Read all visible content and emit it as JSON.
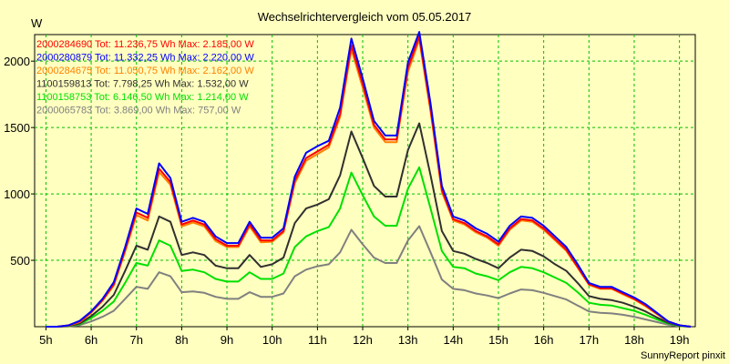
{
  "title": "Wechselrichtervergleich vom 05.05.2017",
  "y_unit": "W",
  "footer": "SunnyReport pinxit",
  "chart_data": {
    "type": "line",
    "title": "Wechselrichtervergleich vom 05.05.2017",
    "xlabel": "",
    "ylabel": "W",
    "xlim": [
      4.75,
      19.35
    ],
    "ylim": [
      0,
      2200
    ],
    "grid": true,
    "legend_position": "top-left",
    "x_ticks": [
      5,
      6,
      7,
      8,
      9,
      10,
      11,
      12,
      13,
      14,
      15,
      16,
      17,
      18,
      19
    ],
    "x_tick_labels": [
      "5h",
      "6h",
      "7h",
      "8h",
      "9h",
      "10h",
      "11h",
      "12h",
      "13h",
      "14h",
      "15h",
      "16h",
      "17h",
      "18h",
      "19h"
    ],
    "y_ticks": [
      500,
      1000,
      1500,
      2000
    ],
    "y_tick_labels": [
      "500",
      "1000",
      "1500",
      "2000"
    ],
    "x": [
      5.0,
      5.25,
      5.5,
      5.75,
      6.0,
      6.25,
      6.5,
      6.75,
      7.0,
      7.25,
      7.5,
      7.75,
      8.0,
      8.25,
      8.5,
      8.75,
      9.0,
      9.25,
      9.5,
      9.75,
      10.0,
      10.25,
      10.5,
      10.75,
      11.0,
      11.25,
      11.5,
      11.75,
      12.0,
      12.25,
      12.5,
      12.75,
      13.0,
      13.25,
      13.5,
      13.75,
      14.0,
      14.25,
      14.5,
      14.75,
      15.0,
      15.25,
      15.5,
      15.75,
      16.0,
      16.25,
      16.5,
      16.75,
      17.0,
      17.25,
      17.5,
      17.75,
      18.0,
      18.25,
      18.5,
      18.75,
      19.0,
      19.25
    ],
    "series": [
      {
        "name": "2000284690",
        "legend": "2000284690 Tot: 11.236,75 Wh Max: 2.185,00 W",
        "color": "#ff0000",
        "values": [
          0,
          0,
          10,
          40,
          110,
          200,
          320,
          580,
          860,
          820,
          1190,
          1090,
          770,
          800,
          770,
          660,
          610,
          610,
          770,
          650,
          650,
          720,
          1100,
          1270,
          1320,
          1370,
          1600,
          2120,
          1830,
          1520,
          1410,
          1410,
          1950,
          2185,
          1640,
          1030,
          810,
          780,
          720,
          680,
          620,
          740,
          810,
          800,
          740,
          660,
          580,
          450,
          320,
          290,
          290,
          250,
          210,
          160,
          100,
          40,
          10,
          0
        ]
      },
      {
        "name": "2000280879",
        "legend": "2000280879 Tot: 11.332,25 Wh Max: 2.220,00 W",
        "color": "#0000ff",
        "values": [
          0,
          0,
          10,
          45,
          115,
          210,
          335,
          600,
          890,
          850,
          1230,
          1120,
          790,
          820,
          790,
          680,
          630,
          630,
          790,
          670,
          670,
          740,
          1130,
          1310,
          1360,
          1400,
          1650,
          2170,
          1870,
          1550,
          1440,
          1440,
          1990,
          2220,
          1680,
          1060,
          830,
          800,
          740,
          700,
          640,
          760,
          830,
          820,
          760,
          680,
          600,
          470,
          330,
          300,
          300,
          260,
          220,
          170,
          105,
          40,
          10,
          0
        ]
      },
      {
        "name": "2000284675",
        "legend": "2000284675 Tot: 11.050,75 Wh Max: 2.162,00 W",
        "color": "#ff8000",
        "values": [
          0,
          0,
          8,
          35,
          105,
          195,
          310,
          565,
          840,
          800,
          1165,
          1070,
          755,
          785,
          755,
          645,
          600,
          600,
          755,
          635,
          640,
          710,
          1080,
          1250,
          1300,
          1350,
          1580,
          2090,
          1800,
          1500,
          1390,
          1390,
          1920,
          2162,
          1620,
          1015,
          800,
          770,
          710,
          670,
          610,
          730,
          800,
          790,
          730,
          650,
          570,
          445,
          315,
          285,
          285,
          245,
          205,
          155,
          95,
          38,
          10,
          0
        ]
      },
      {
        "name": "1100159813",
        "legend": "1100159813 Tot: 7.798,25 Wh Max: 1.532,00 W",
        "color": "#303030",
        "values": [
          0,
          0,
          5,
          25,
          80,
          150,
          240,
          420,
          610,
          580,
          830,
          790,
          540,
          560,
          540,
          460,
          440,
          440,
          540,
          450,
          470,
          520,
          780,
          890,
          920,
          960,
          1140,
          1470,
          1270,
          1060,
          980,
          980,
          1330,
          1532,
          1140,
          720,
          570,
          550,
          510,
          480,
          440,
          520,
          580,
          570,
          530,
          470,
          420,
          330,
          230,
          210,
          200,
          180,
          150,
          115,
          70,
          30,
          8,
          0
        ]
      },
      {
        "name": "1100158753",
        "legend": "1100158753 Tot: 6.146,50 Wh Max: 1.214,00 W",
        "color": "#00e000",
        "values": [
          0,
          0,
          4,
          20,
          65,
          120,
          190,
          330,
          480,
          460,
          650,
          610,
          420,
          430,
          410,
          360,
          340,
          340,
          410,
          360,
          360,
          400,
          600,
          680,
          720,
          750,
          890,
          1160,
          990,
          830,
          760,
          760,
          1040,
          1200,
          890,
          570,
          450,
          440,
          400,
          380,
          350,
          410,
          450,
          440,
          410,
          370,
          330,
          260,
          180,
          165,
          160,
          140,
          120,
          90,
          55,
          25,
          6,
          0
        ]
      },
      {
        "name": "2000065783",
        "legend": "2000065783 Tot: 3.869,00 Wh Max: 757,00 W",
        "color": "#808080",
        "values": [
          0,
          0,
          3,
          12,
          40,
          75,
          120,
          210,
          300,
          285,
          410,
          380,
          260,
          265,
          255,
          225,
          210,
          210,
          260,
          225,
          225,
          250,
          380,
          430,
          455,
          470,
          560,
          730,
          620,
          520,
          480,
          480,
          650,
          757,
          560,
          355,
          285,
          275,
          250,
          235,
          215,
          250,
          280,
          275,
          255,
          230,
          205,
          160,
          115,
          105,
          100,
          90,
          75,
          55,
          35,
          15,
          4,
          0
        ]
      }
    ]
  }
}
